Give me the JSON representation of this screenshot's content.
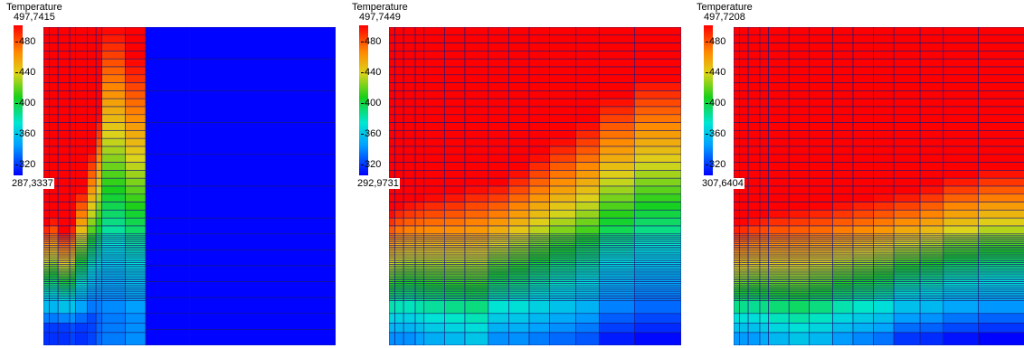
{
  "chart_data": [
    {
      "type": "heatmap",
      "title": "Temperature",
      "colorbar_max_label": "497,7415",
      "colorbar_min_label": "287,3337",
      "colorbar_ticks": [
        "480",
        "440",
        "400",
        "360",
        "320"
      ],
      "range": [
        287.3337,
        497.7415
      ],
      "columns": [
        {
          "x": [
            0.0,
            0.02
          ],
          "fine": true,
          "front": [
            0.62,
            0.95,
            300
          ]
        },
        {
          "x": [
            0.02,
            0.05
          ],
          "fine": true,
          "front": [
            0.6,
            0.95,
            300
          ]
        },
        {
          "x": [
            0.05,
            0.09
          ],
          "fine": true,
          "front": [
            0.64,
            0.95,
            300
          ]
        },
        {
          "x": [
            0.09,
            0.11
          ],
          "fine": true,
          "front": [
            0.62,
            0.95,
            305
          ]
        },
        {
          "x": [
            0.11,
            0.15
          ],
          "fine": true,
          "front": [
            0.51,
            0.95,
            300
          ]
        },
        {
          "x": [
            0.15,
            0.18
          ],
          "fine": true,
          "front": [
            0.39,
            0.92,
            305
          ]
        },
        {
          "x": [
            0.18,
            0.2
          ],
          "fine": true,
          "front": [
            0.28,
            0.9,
            315
          ]
        },
        {
          "x": [
            0.2,
            0.28
          ],
          "fine": true,
          "front": [
            0.0,
            0.9,
            320
          ]
        },
        {
          "x": [
            0.28,
            0.35
          ],
          "fine": true,
          "front": [
            0.1,
            0.9,
            325
          ]
        },
        {
          "x": [
            0.35,
            0.5
          ],
          "fine": false,
          "front": [
            0.0,
            0.0,
            288
          ]
        },
        {
          "x": [
            0.5,
            1.0
          ],
          "fine": false,
          "front": [
            0.0,
            0.0,
            288
          ]
        }
      ]
    },
    {
      "type": "heatmap",
      "title": "Temperature",
      "colorbar_max_label": "497,7449",
      "colorbar_min_label": "292,9731",
      "colorbar_ticks": [
        "480",
        "440",
        "400",
        "360",
        "320"
      ],
      "range": [
        292.9731,
        497.7449
      ],
      "columns": [
        {
          "x": [
            0.0,
            0.02
          ],
          "fine": true,
          "front": [
            0.58,
            0.98,
            330
          ]
        },
        {
          "x": [
            0.02,
            0.05
          ],
          "fine": true,
          "front": [
            0.56,
            0.98,
            330
          ]
        },
        {
          "x": [
            0.05,
            0.09
          ],
          "fine": true,
          "front": [
            0.55,
            0.98,
            330
          ]
        },
        {
          "x": [
            0.09,
            0.12
          ],
          "fine": true,
          "front": [
            0.54,
            0.98,
            335
          ]
        },
        {
          "x": [
            0.12,
            0.19
          ],
          "fine": true,
          "front": [
            0.53,
            0.98,
            340
          ]
        },
        {
          "x": [
            0.19,
            0.26
          ],
          "fine": true,
          "front": [
            0.52,
            0.98,
            345
          ]
        },
        {
          "x": [
            0.26,
            0.34
          ],
          "fine": true,
          "front": [
            0.5,
            0.98,
            350
          ]
        },
        {
          "x": [
            0.34,
            0.41
          ],
          "fine": true,
          "front": [
            0.49,
            0.98,
            330
          ]
        },
        {
          "x": [
            0.41,
            0.48
          ],
          "fine": true,
          "front": [
            0.45,
            0.98,
            330
          ]
        },
        {
          "x": [
            0.48,
            0.55
          ],
          "fine": true,
          "front": [
            0.4,
            0.98,
            325
          ]
        },
        {
          "x": [
            0.55,
            0.64
          ],
          "fine": true,
          "front": [
            0.35,
            0.98,
            320
          ]
        },
        {
          "x": [
            0.64,
            0.72
          ],
          "fine": true,
          "front": [
            0.3,
            0.98,
            315
          ]
        },
        {
          "x": [
            0.72,
            0.84
          ],
          "fine": true,
          "front": [
            0.22,
            0.98,
            300
          ]
        },
        {
          "x": [
            0.84,
            1.0
          ],
          "fine": true,
          "front": [
            0.16,
            0.98,
            295
          ]
        }
      ]
    },
    {
      "type": "heatmap",
      "title": "Temperature",
      "colorbar_max_label": "497,7208",
      "colorbar_min_label": "307,6404",
      "colorbar_ticks": [
        "480",
        "440",
        "400",
        "360",
        "320"
      ],
      "range": [
        307.6404,
        497.7208
      ],
      "columns": [
        {
          "x": [
            0.0,
            0.02
          ],
          "fine": true,
          "front": [
            0.62,
            0.98,
            345
          ]
        },
        {
          "x": [
            0.02,
            0.05
          ],
          "fine": true,
          "front": [
            0.61,
            0.98,
            345
          ]
        },
        {
          "x": [
            0.05,
            0.09
          ],
          "fine": true,
          "front": [
            0.6,
            0.98,
            345
          ]
        },
        {
          "x": [
            0.09,
            0.12
          ],
          "fine": true,
          "front": [
            0.59,
            0.98,
            350
          ]
        },
        {
          "x": [
            0.12,
            0.19
          ],
          "fine": true,
          "front": [
            0.58,
            0.98,
            355
          ]
        },
        {
          "x": [
            0.19,
            0.26
          ],
          "fine": true,
          "front": [
            0.57,
            0.98,
            360
          ]
        },
        {
          "x": [
            0.26,
            0.34
          ],
          "fine": true,
          "front": [
            0.56,
            0.98,
            355
          ]
        },
        {
          "x": [
            0.34,
            0.41
          ],
          "fine": true,
          "front": [
            0.55,
            0.98,
            345
          ]
        },
        {
          "x": [
            0.41,
            0.48
          ],
          "fine": true,
          "front": [
            0.54,
            0.98,
            340
          ]
        },
        {
          "x": [
            0.48,
            0.55
          ],
          "fine": true,
          "front": [
            0.53,
            0.98,
            335
          ]
        },
        {
          "x": [
            0.55,
            0.64
          ],
          "fine": true,
          "front": [
            0.52,
            0.98,
            320
          ]
        },
        {
          "x": [
            0.64,
            0.72
          ],
          "fine": true,
          "front": [
            0.5,
            0.98,
            318
          ]
        },
        {
          "x": [
            0.72,
            0.84
          ],
          "fine": true,
          "front": [
            0.47,
            0.98,
            312
          ]
        },
        {
          "x": [
            0.84,
            1.0
          ],
          "fine": true,
          "front": [
            0.45,
            0.98,
            308
          ]
        }
      ]
    }
  ]
}
